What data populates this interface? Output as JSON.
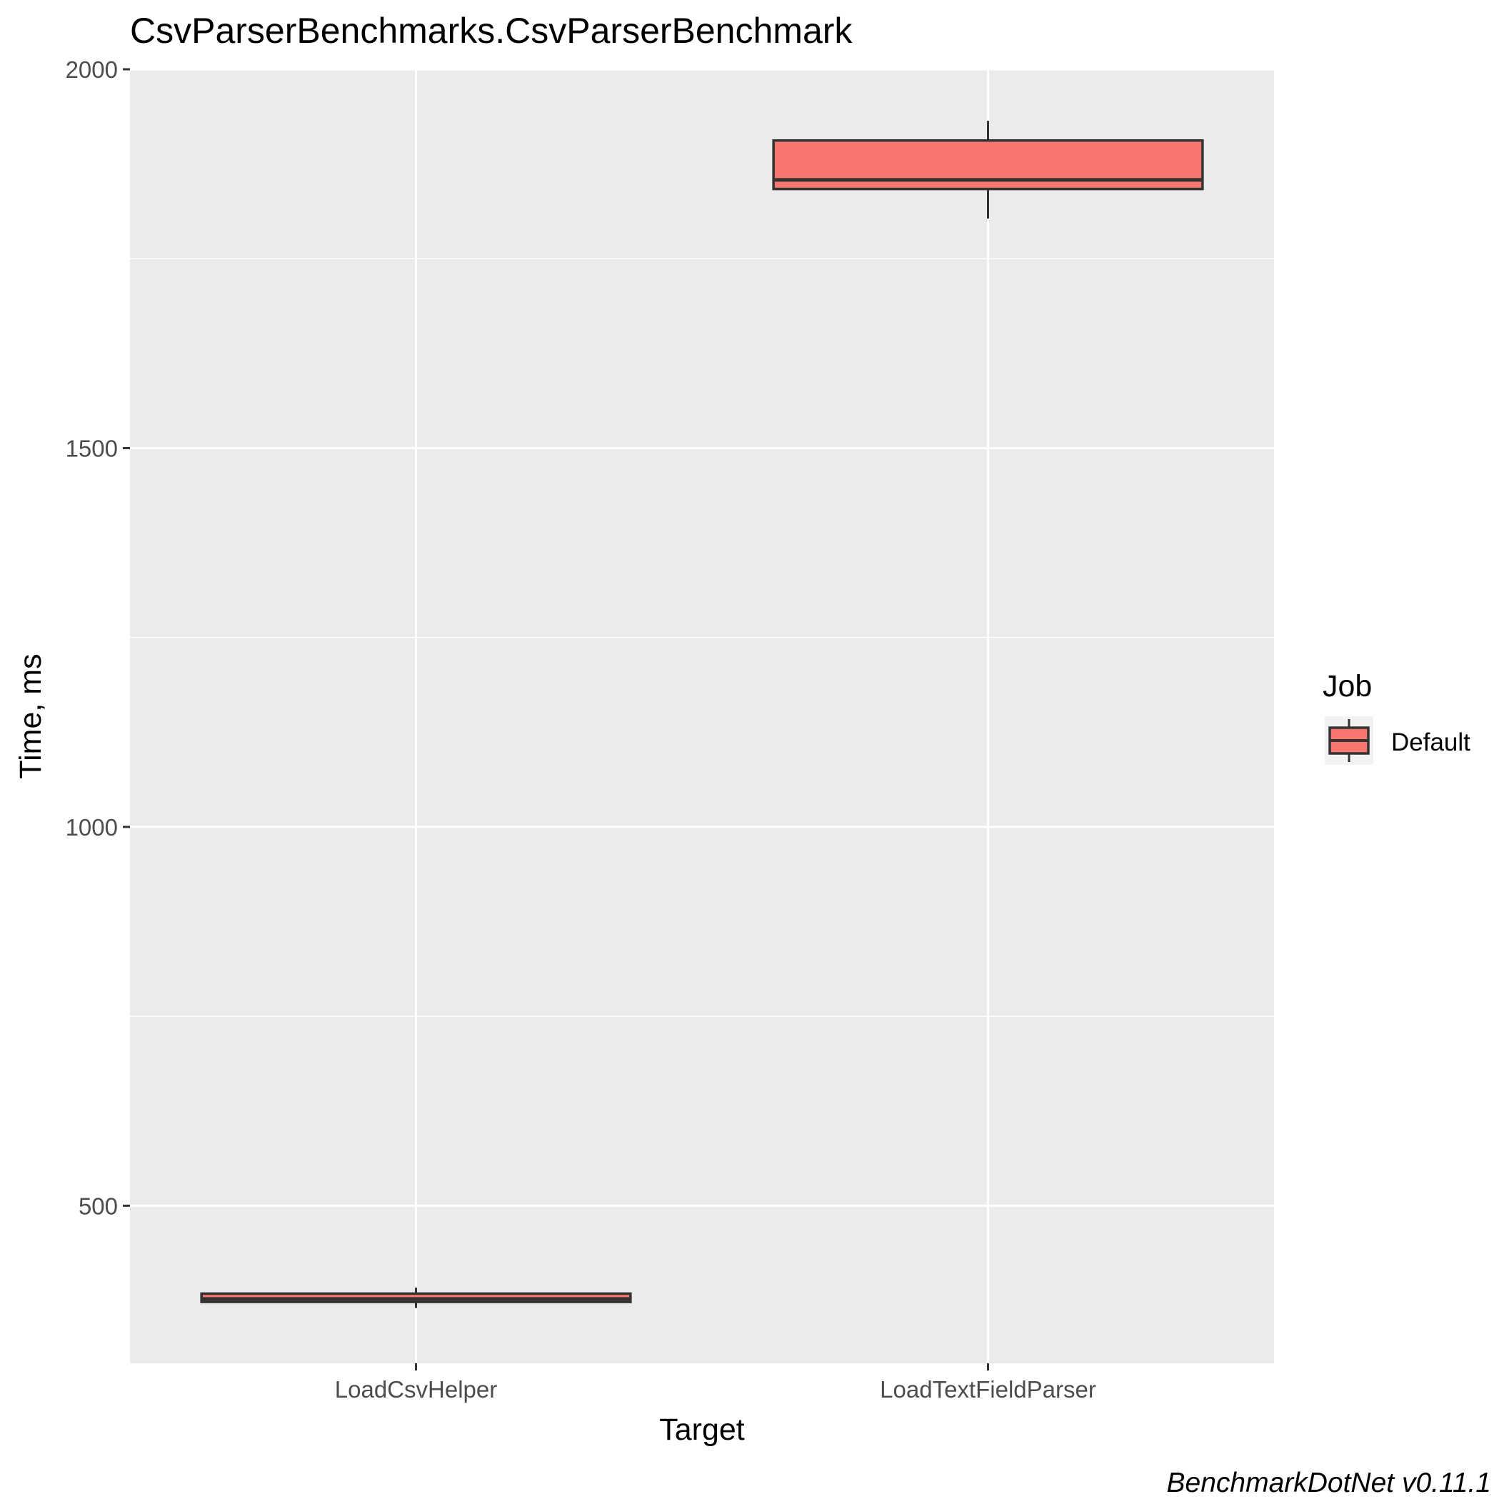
{
  "chart_data": {
    "type": "boxplot",
    "title": "CsvParserBenchmarks.CsvParserBenchmark",
    "xlabel": "Target",
    "ylabel": "Time, ms",
    "ylim": [
      292,
      2000
    ],
    "yticks": [
      500,
      1000,
      1500,
      2000
    ],
    "grid": true,
    "legend_position": "right",
    "caption": "BenchmarkDotNet v0.11.1",
    "colors": {
      "fill": "#F8766D",
      "stroke": "#333333",
      "panel": "#EBEBEB",
      "grid": "#FFFFFF"
    },
    "categories": [
      "LoadCsvHelper",
      "LoadTextFieldParser"
    ],
    "series": [
      {
        "name": "Default",
        "boxes": [
          {
            "category": "LoadCsvHelper",
            "whisker_low": 365,
            "q1": 373,
            "median": 377,
            "q3": 384,
            "whisker_high": 392
          },
          {
            "category": "LoadTextFieldParser",
            "whisker_low": 1803,
            "q1": 1842,
            "median": 1854,
            "q3": 1906,
            "whisker_high": 1932
          }
        ]
      }
    ],
    "legend": {
      "title": "Job",
      "items": [
        "Default"
      ]
    }
  }
}
